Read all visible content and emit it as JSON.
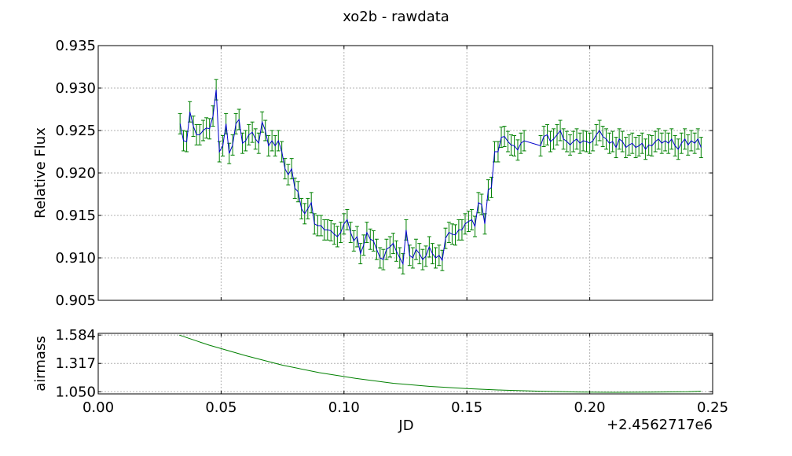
{
  "chart_data": [
    {
      "type": "line",
      "title": "xo2b - rawdata",
      "xlabel": "",
      "ylabel": "Relative Flux",
      "xlim": [
        0.0,
        0.25
      ],
      "ylim": [
        0.905,
        0.935
      ],
      "yticks": [
        "0.905",
        "0.910",
        "0.915",
        "0.920",
        "0.925",
        "0.930",
        "0.935"
      ],
      "grid": true,
      "series": [
        {
          "color": "#0000cc",
          "errorbar_color": "#008000",
          "x": [
            0.0333,
            0.0347,
            0.036,
            0.0373,
            0.0387,
            0.04,
            0.0413,
            0.0427,
            0.044,
            0.0453,
            0.0467,
            0.048,
            0.0493,
            0.0507,
            0.052,
            0.0533,
            0.0547,
            0.056,
            0.0573,
            0.0587,
            0.06,
            0.0613,
            0.0627,
            0.064,
            0.0653,
            0.0667,
            0.068,
            0.0693,
            0.0707,
            0.072,
            0.0733,
            0.0747,
            0.076,
            0.0773,
            0.0787,
            0.08,
            0.0813,
            0.0827,
            0.084,
            0.0853,
            0.0867,
            0.088,
            0.0893,
            0.0907,
            0.092,
            0.0933,
            0.0947,
            0.096,
            0.0973,
            0.0987,
            0.1,
            0.1013,
            0.1027,
            0.104,
            0.1053,
            0.1067,
            0.108,
            0.1093,
            0.1107,
            0.112,
            0.1133,
            0.1147,
            0.116,
            0.1173,
            0.1187,
            0.12,
            0.1213,
            0.1227,
            0.124,
            0.1253,
            0.1267,
            0.128,
            0.1293,
            0.1307,
            0.132,
            0.1333,
            0.1347,
            0.136,
            0.1373,
            0.1387,
            0.14,
            0.1413,
            0.1427,
            0.144,
            0.1453,
            0.1467,
            0.148,
            0.1493,
            0.1507,
            0.152,
            0.1533,
            0.1547,
            0.156,
            0.1573,
            0.1587,
            0.16,
            0.1613,
            0.1627,
            0.164,
            0.1653,
            0.1667,
            0.168,
            0.1693,
            0.1707,
            0.172,
            0.1733,
            0.18,
            0.1813,
            0.1827,
            0.184,
            0.1853,
            0.1867,
            0.188,
            0.1893,
            0.1907,
            0.192,
            0.1933,
            0.1947,
            0.196,
            0.1973,
            0.1987,
            0.2,
            0.2013,
            0.2027,
            0.204,
            0.2053,
            0.2067,
            0.208,
            0.2093,
            0.2107,
            0.212,
            0.2133,
            0.2147,
            0.216,
            0.2173,
            0.2187,
            0.22,
            0.2213,
            0.2227,
            0.224,
            0.2253,
            0.2267,
            0.228,
            0.2293,
            0.2307,
            0.232,
            0.2333,
            0.2347,
            0.236,
            0.2373,
            0.2387,
            0.24,
            0.2413,
            0.2427,
            0.244,
            0.2453
          ],
          "y": [
            0.9258,
            0.9238,
            0.9237,
            0.9272,
            0.9255,
            0.9245,
            0.9245,
            0.925,
            0.9253,
            0.9252,
            0.9267,
            0.9298,
            0.9225,
            0.9232,
            0.9258,
            0.9223,
            0.9233,
            0.9258,
            0.9263,
            0.9235,
            0.9238,
            0.9245,
            0.9248,
            0.924,
            0.9235,
            0.926,
            0.925,
            0.9232,
            0.9238,
            0.9232,
            0.9238,
            0.9225,
            0.9205,
            0.9198,
            0.9205,
            0.9182,
            0.9178,
            0.9158,
            0.9152,
            0.9158,
            0.9165,
            0.914,
            0.9138,
            0.9138,
            0.9133,
            0.9133,
            0.9132,
            0.9128,
            0.9125,
            0.913,
            0.914,
            0.9145,
            0.913,
            0.912,
            0.9125,
            0.9105,
            0.9115,
            0.913,
            0.9122,
            0.912,
            0.911,
            0.91,
            0.9098,
            0.911,
            0.9113,
            0.9117,
            0.9108,
            0.91,
            0.9093,
            0.9133,
            0.9103,
            0.91,
            0.911,
            0.9105,
            0.9098,
            0.9102,
            0.9113,
            0.9105,
            0.91,
            0.9103,
            0.9097,
            0.9123,
            0.913,
            0.9128,
            0.9127,
            0.9133,
            0.9133,
            0.914,
            0.9143,
            0.9145,
            0.9137,
            0.9165,
            0.9163,
            0.914,
            0.918,
            0.9183,
            0.9225,
            0.9225,
            0.9242,
            0.9243,
            0.9237,
            0.9233,
            0.9232,
            0.9227,
            0.9235,
            0.9238,
            0.9232,
            0.9243,
            0.9245,
            0.9237,
            0.924,
            0.9245,
            0.925,
            0.924,
            0.9237,
            0.9233,
            0.9237,
            0.924,
            0.9235,
            0.9238,
            0.9237,
            0.9235,
            0.9238,
            0.9245,
            0.925,
            0.9243,
            0.924,
            0.9235,
            0.9237,
            0.923,
            0.924,
            0.9237,
            0.923,
            0.9233,
            0.9235,
            0.923,
            0.9232,
            0.9235,
            0.9228,
            0.9233,
            0.9232,
            0.9237,
            0.924,
            0.9235,
            0.9238,
            0.9235,
            0.924,
            0.9232,
            0.9228,
            0.9235,
            0.924,
            0.9233,
            0.9238,
            0.9235,
            0.924,
            0.923
          ],
          "yerr": 0.0012
        }
      ]
    },
    {
      "type": "line",
      "xlabel": "JD",
      "x_offset_label": "+2.4562717e6",
      "ylabel": "airmass",
      "xlim": [
        0.0,
        0.25
      ],
      "ylim": [
        1.03,
        1.6
      ],
      "xticks": [
        "0.00",
        "0.05",
        "0.10",
        "0.15",
        "0.20",
        "0.25"
      ],
      "yticks": [
        "1.050",
        "1.317",
        "1.584"
      ],
      "grid": true,
      "series": [
        {
          "color": "#008000",
          "x": [
            0.033,
            0.045,
            0.06,
            0.075,
            0.09,
            0.105,
            0.12,
            0.135,
            0.15,
            0.165,
            0.18,
            0.195,
            0.21,
            0.225,
            0.24,
            0.2453
          ],
          "y": [
            1.584,
            1.49,
            1.39,
            1.3,
            1.23,
            1.175,
            1.13,
            1.1,
            1.08,
            1.065,
            1.055,
            1.048,
            1.045,
            1.046,
            1.05,
            1.055
          ]
        }
      ]
    }
  ]
}
